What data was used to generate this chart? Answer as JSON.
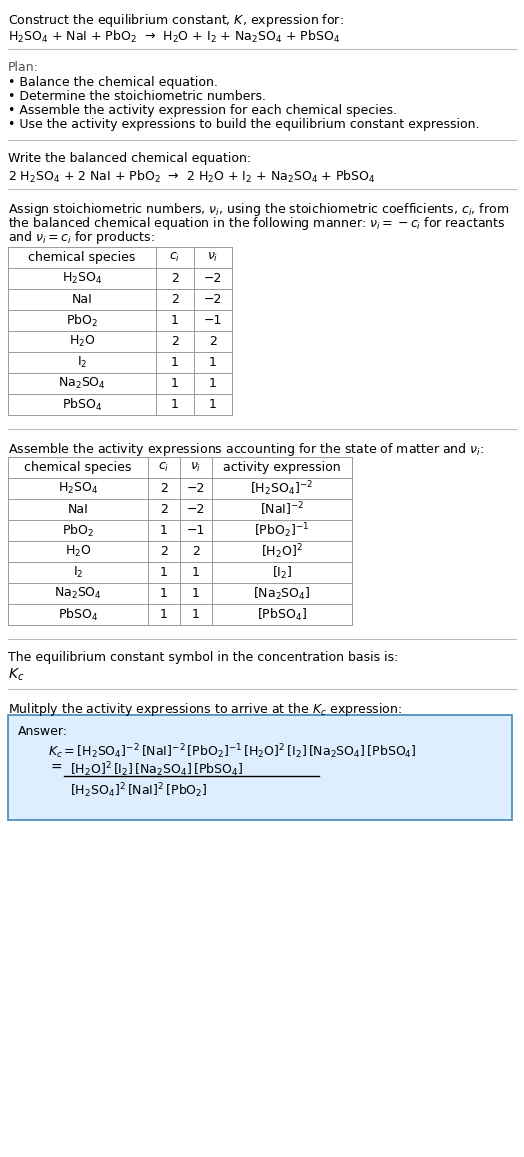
{
  "title_line1": "Construct the equilibrium constant, $K$, expression for:",
  "title_line2": "$\\mathrm{H_2SO_4}$ + NaI + $\\mathrm{PbO_2}$  →  $\\mathrm{H_2O}$ + $\\mathrm{I_2}$ + $\\mathrm{Na_2SO_4}$ + $\\mathrm{PbSO_4}$",
  "plan_title": "Plan:",
  "plan_items": [
    "• Balance the chemical equation.",
    "• Determine the stoichiometric numbers.",
    "• Assemble the activity expression for each chemical species.",
    "• Use the activity expressions to build the equilibrium constant expression."
  ],
  "balanced_eq_label": "Write the balanced chemical equation:",
  "balanced_eq": "2 $\\mathrm{H_2SO_4}$ + 2 NaI + $\\mathrm{PbO_2}$  →  2 $\\mathrm{H_2O}$ + $\\mathrm{I_2}$ + $\\mathrm{Na_2SO_4}$ + $\\mathrm{PbSO_4}$",
  "stoich_lines": [
    "Assign stoichiometric numbers, $\\nu_i$, using the stoichiometric coefficients, $c_i$, from",
    "the balanced chemical equation in the following manner: $\\nu_i = -c_i$ for reactants",
    "and $\\nu_i = c_i$ for products:"
  ],
  "table1_headers": [
    "chemical species",
    "$c_i$",
    "$\\nu_i$"
  ],
  "table1_rows": [
    [
      "$\\mathrm{H_2SO_4}$",
      "2",
      "−2"
    ],
    [
      "NaI",
      "2",
      "−2"
    ],
    [
      "$\\mathrm{PbO_2}$",
      "1",
      "−1"
    ],
    [
      "$\\mathrm{H_2O}$",
      "2",
      "2"
    ],
    [
      "$\\mathrm{I_2}$",
      "1",
      "1"
    ],
    [
      "$\\mathrm{Na_2SO_4}$",
      "1",
      "1"
    ],
    [
      "$\\mathrm{PbSO_4}$",
      "1",
      "1"
    ]
  ],
  "activity_label": "Assemble the activity expressions accounting for the state of matter and $\\nu_i$:",
  "table2_headers": [
    "chemical species",
    "$c_i$",
    "$\\nu_i$",
    "activity expression"
  ],
  "table2_rows": [
    [
      "$\\mathrm{H_2SO_4}$",
      "2",
      "−2",
      "$[\\mathrm{H_2SO_4}]^{-2}$"
    ],
    [
      "NaI",
      "2",
      "−2",
      "$[\\mathrm{NaI}]^{-2}$"
    ],
    [
      "$\\mathrm{PbO_2}$",
      "1",
      "−1",
      "$[\\mathrm{PbO_2}]^{-1}$"
    ],
    [
      "$\\mathrm{H_2O}$",
      "2",
      "2",
      "$[\\mathrm{H_2O}]^2$"
    ],
    [
      "$\\mathrm{I_2}$",
      "1",
      "1",
      "$[\\mathrm{I_2}]$"
    ],
    [
      "$\\mathrm{Na_2SO_4}$",
      "1",
      "1",
      "$[\\mathrm{Na_2SO_4}]$"
    ],
    [
      "$\\mathrm{PbSO_4}$",
      "1",
      "1",
      "$[\\mathrm{PbSO_4}]$"
    ]
  ],
  "kc_label": "The equilibrium constant symbol in the concentration basis is:",
  "kc_symbol": "$K_c$",
  "multiply_label": "Mulitply the activity expressions to arrive at the $K_c$ expression:",
  "answer_label": "Answer:",
  "answer_line1": "$K_c = [\\mathrm{H_2SO_4}]^{-2}\\,[\\mathrm{NaI}]^{-2}\\,[\\mathrm{PbO_2}]^{-1}\\,[\\mathrm{H_2O}]^2\\,[\\mathrm{I_2}]\\,[\\mathrm{Na_2SO_4}]\\,[\\mathrm{PbSO_4}]$",
  "answer_num": "$[\\mathrm{H_2O}]^2\\,[\\mathrm{I_2}]\\,[\\mathrm{Na_2SO_4}]\\,[\\mathrm{PbSO_4}]$",
  "answer_den": "$[\\mathrm{H_2SO_4}]^2\\,[\\mathrm{NaI}]^2\\,[\\mathrm{PbO_2}]$",
  "answer_box_color": "#ddeeff",
  "answer_box_border": "#4488bb",
  "divider_color": "#bbbbbb",
  "bg_color": "#ffffff",
  "text_color": "#000000",
  "font_size": 9.0
}
